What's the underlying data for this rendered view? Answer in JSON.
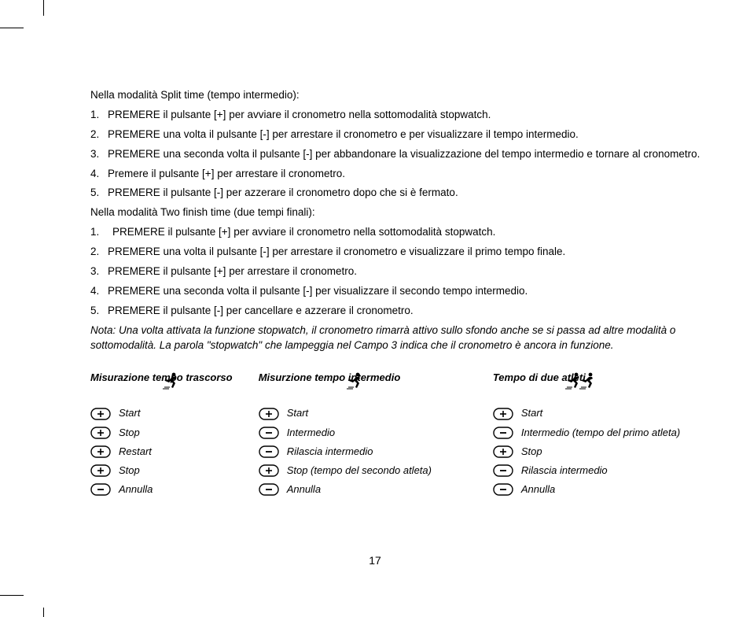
{
  "pageNumber": "17",
  "intro_split": "Nella modalità Split time (tempo intermedio):",
  "list_split": [
    "PREMERE il pulsante [+] per avviare il cronometro nella sottomodalità stopwatch.",
    "PREMERE una volta il pulsante [-] per arrestare il cronometro e per visualizzare il tempo intermedio.",
    "PREMERE una seconda volta il pulsante [-] per abbandonare la visualizzazione del tempo intermedio e tornare al cronometro.",
    "Premere il pulsante [+] per arrestare il cronometro.",
    "PREMERE il pulsante [-] per azzerare il cronometro dopo che si è fermato."
  ],
  "intro_twofinish": "Nella modalità Two finish time (due tempi finali):",
  "list_twofinish": [
    "PREMERE il pulsante [+] per avviare il cronometro nella sottomodalità stopwatch.",
    "PREMERE una volta il pulsante [-] per arrestare il cronometro e visualizzare il primo tempo finale.",
    "PREMERE il pulsante [+] per arrestare il cronometro.",
    "PREMERE una seconda volta il pulsante [-] per visualizzare il secondo tempo intermedio.",
    "PREMERE il pulsante [-] per cancellare e azzerare il cronometro."
  ],
  "note": "Nota: Una volta attivata la funzione stopwatch, il cronometro rimarrà attivo sullo sfondo anche se si passa ad altre modalità o sottomodalità. La parola \"stopwatch\" che lampeggia nel Campo 3 indica che il cronometro è ancora in funzione.",
  "columns": [
    {
      "title": "Misurazione tempo trascorso",
      "runners": 1,
      "runnerLeft": 90,
      "steps": [
        {
          "btn": "plus",
          "label": "Start"
        },
        {
          "btn": "plus",
          "label": "Stop"
        },
        {
          "btn": "plus",
          "label": "Restart"
        },
        {
          "btn": "plus",
          "label": "Stop"
        },
        {
          "btn": "minus",
          "label": "Annulla"
        }
      ]
    },
    {
      "title": "Misurzione tempo intermedio",
      "runners": 1,
      "runnerLeft": 110,
      "steps": [
        {
          "btn": "plus",
          "label": "Start"
        },
        {
          "btn": "minus",
          "label": "Intermedio"
        },
        {
          "btn": "minus",
          "label": "Rilascia intermedio"
        },
        {
          "btn": "plus",
          "label": "Stop (tempo del secondo atleta)"
        },
        {
          "btn": "minus",
          "label": "Annulla"
        }
      ]
    },
    {
      "title": "Tempo di due atleti",
      "runners": 2,
      "runnerLeft": 90,
      "steps": [
        {
          "btn": "plus",
          "label": "Start"
        },
        {
          "btn": "minus",
          "label": "Intermedio (tempo del primo atleta)"
        },
        {
          "btn": "plus",
          "label": "Stop"
        },
        {
          "btn": "minus",
          "label": "Rilascia intermedio"
        },
        {
          "btn": "minus",
          "label": "Annulla"
        }
      ]
    }
  ],
  "colors": {
    "text": "#000000",
    "background": "#ffffff"
  }
}
